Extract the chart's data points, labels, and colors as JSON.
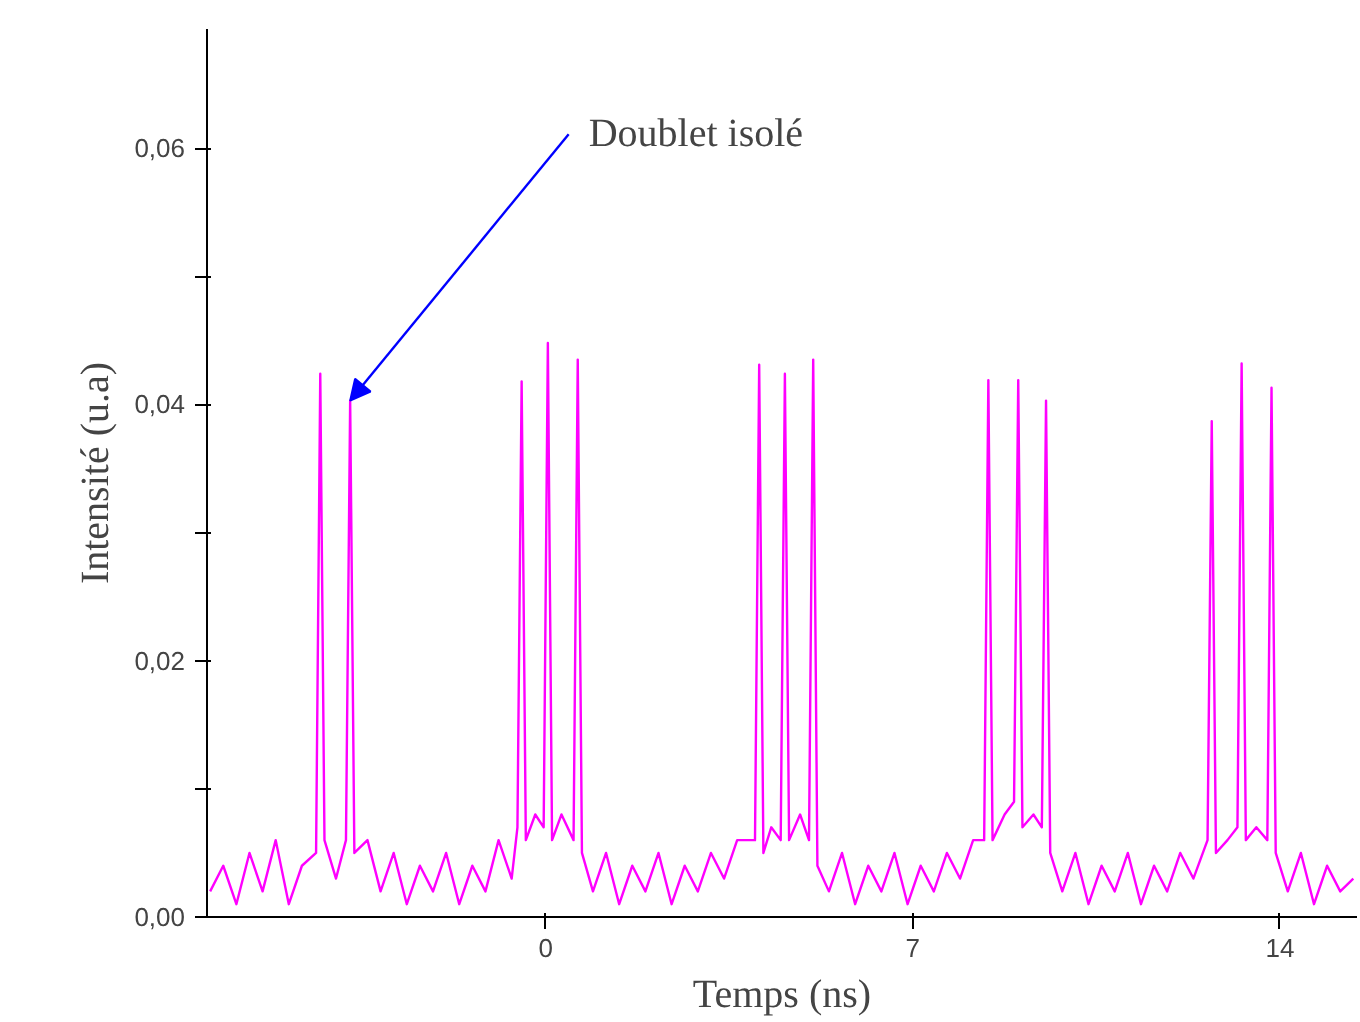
{
  "chart_data": {
    "type": "line",
    "xlabel": "Temps (ns)",
    "ylabel": "Intensité (u.a)",
    "annotations": [
      {
        "text": "Doublet isolé",
        "x": -3.73,
        "y": 0.0403
      }
    ],
    "xlim": [
      -6.46,
      15.47
    ],
    "ylim": [
      0,
      0.0693
    ],
    "xticks": [
      0,
      7,
      14
    ],
    "yticks": [
      {
        "value": 0,
        "label": "0,00"
      },
      {
        "value": 0.01,
        "label": null
      },
      {
        "value": 0.02,
        "label": "0,02"
      },
      {
        "value": 0.03,
        "label": null
      },
      {
        "value": 0.04,
        "label": "0,04"
      },
      {
        "value": 0.05,
        "label": null
      },
      {
        "value": 0.06,
        "label": "0,06"
      }
    ],
    "grid": false,
    "marker": "none",
    "line_style": "solid",
    "x": [
      -6.4,
      -6.15,
      -5.9,
      -5.65,
      -5.4,
      -5.15,
      -4.9,
      -4.65,
      -4.38,
      -4.3,
      -4.22,
      -4.0,
      -3.81,
      -3.73,
      -3.65,
      -3.4,
      -3.15,
      -2.9,
      -2.65,
      -2.4,
      -2.15,
      -1.9,
      -1.65,
      -1.4,
      -1.15,
      -0.9,
      -0.65,
      -0.54,
      -0.46,
      -0.38,
      -0.2,
      -0.04,
      0.04,
      0.12,
      0.3,
      0.53,
      0.61,
      0.69,
      0.9,
      1.15,
      1.4,
      1.65,
      1.9,
      2.15,
      2.4,
      2.65,
      2.9,
      3.15,
      3.4,
      3.65,
      3.99,
      4.07,
      4.15,
      4.3,
      4.48,
      4.56,
      4.64,
      4.85,
      5.02,
      5.1,
      5.18,
      5.4,
      5.65,
      5.9,
      6.15,
      6.4,
      6.65,
      6.9,
      7.15,
      7.4,
      7.65,
      7.9,
      8.15,
      8.36,
      8.44,
      8.52,
      8.75,
      8.93,
      9.01,
      9.09,
      9.3,
      9.46,
      9.54,
      9.62,
      9.85,
      10.1,
      10.35,
      10.6,
      10.85,
      11.1,
      11.35,
      11.6,
      11.85,
      12.1,
      12.35,
      12.62,
      12.7,
      12.78,
      13.0,
      13.19,
      13.27,
      13.35,
      13.55,
      13.76,
      13.84,
      13.92,
      14.15,
      14.4,
      14.65,
      14.9,
      15.15,
      15.4
    ],
    "series": [
      {
        "color": "#ff00ff",
        "values": [
          0.002,
          0.004,
          0.001,
          0.005,
          0.002,
          0.006,
          0.001,
          0.004,
          0.005,
          0.0424,
          0.006,
          0.003,
          0.006,
          0.0403,
          0.005,
          0.006,
          0.002,
          0.005,
          0.001,
          0.004,
          0.002,
          0.005,
          0.001,
          0.004,
          0.002,
          0.006,
          0.003,
          0.007,
          0.0418,
          0.006,
          0.008,
          0.007,
          0.0448,
          0.006,
          0.008,
          0.006,
          0.0435,
          0.005,
          0.002,
          0.005,
          0.001,
          0.004,
          0.002,
          0.005,
          0.001,
          0.004,
          0.002,
          0.005,
          0.003,
          0.006,
          0.006,
          0.0431,
          0.005,
          0.007,
          0.006,
          0.0424,
          0.006,
          0.008,
          0.006,
          0.0435,
          0.004,
          0.002,
          0.005,
          0.001,
          0.004,
          0.002,
          0.005,
          0.001,
          0.004,
          0.002,
          0.005,
          0.003,
          0.006,
          0.006,
          0.0419,
          0.006,
          0.008,
          0.009,
          0.0419,
          0.007,
          0.008,
          0.007,
          0.0403,
          0.005,
          0.002,
          0.005,
          0.001,
          0.004,
          0.002,
          0.005,
          0.001,
          0.004,
          0.002,
          0.005,
          0.003,
          0.006,
          0.0387,
          0.005,
          0.006,
          0.007,
          0.0432,
          0.006,
          0.007,
          0.006,
          0.0413,
          0.005,
          0.002,
          0.005,
          0.001,
          0.004,
          0.002,
          0.003
        ]
      }
    ]
  }
}
